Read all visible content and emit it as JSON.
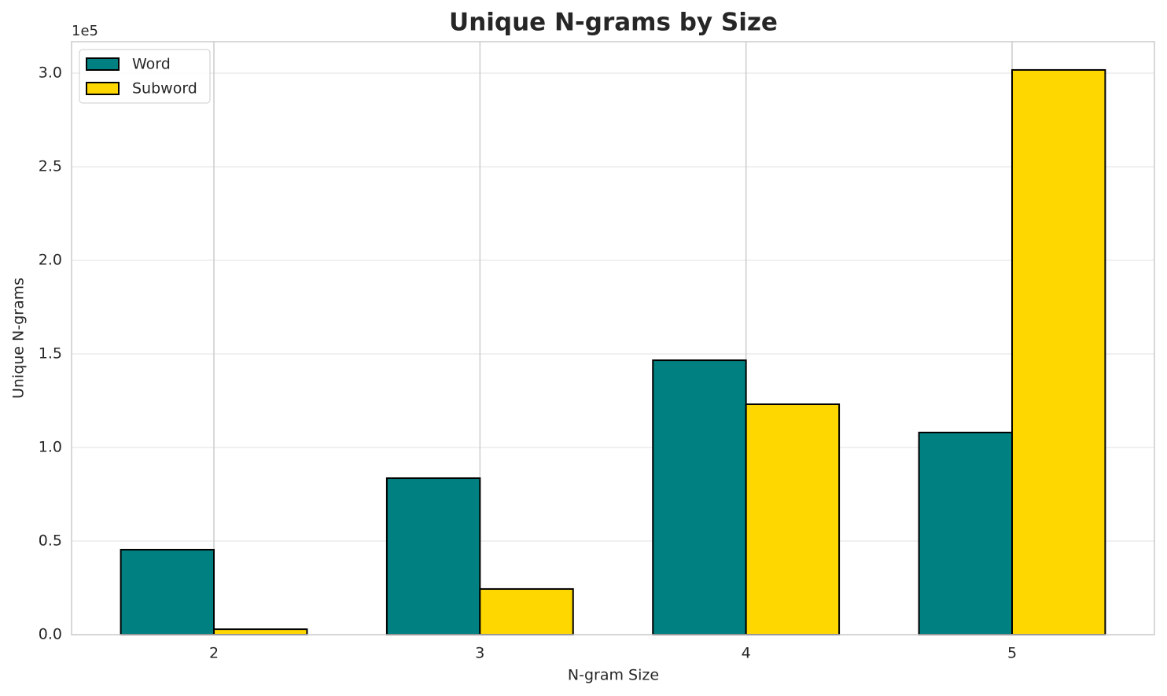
{
  "chart_data": {
    "type": "bar",
    "title": "Unique N-grams by Size",
    "xlabel": "N-gram Size",
    "ylabel": "Unique N-grams",
    "y_offset_label": "1e5",
    "x": [
      2,
      3,
      4,
      5
    ],
    "series": [
      {
        "name": "Word",
        "color": "#008080",
        "values": [
          45400,
          83600,
          146600,
          108000
        ]
      },
      {
        "name": "Subword",
        "color": "#ffd700",
        "values": [
          2900,
          24400,
          123100,
          301700
        ]
      }
    ],
    "xlim": [
      1.465,
      5.535
    ],
    "xticks": [
      2,
      3,
      4,
      5
    ],
    "ylim": [
      0,
      316800
    ],
    "yticks": [
      {
        "value": 0,
        "label": "0.0"
      },
      {
        "value": 50000,
        "label": "0.5"
      },
      {
        "value": 100000,
        "label": "1.0"
      },
      {
        "value": 150000,
        "label": "1.5"
      },
      {
        "value": 200000,
        "label": "2.0"
      },
      {
        "value": 250000,
        "label": "2.5"
      },
      {
        "value": 300000,
        "label": "3.0"
      }
    ],
    "grid": true,
    "legend": "upper left"
  }
}
